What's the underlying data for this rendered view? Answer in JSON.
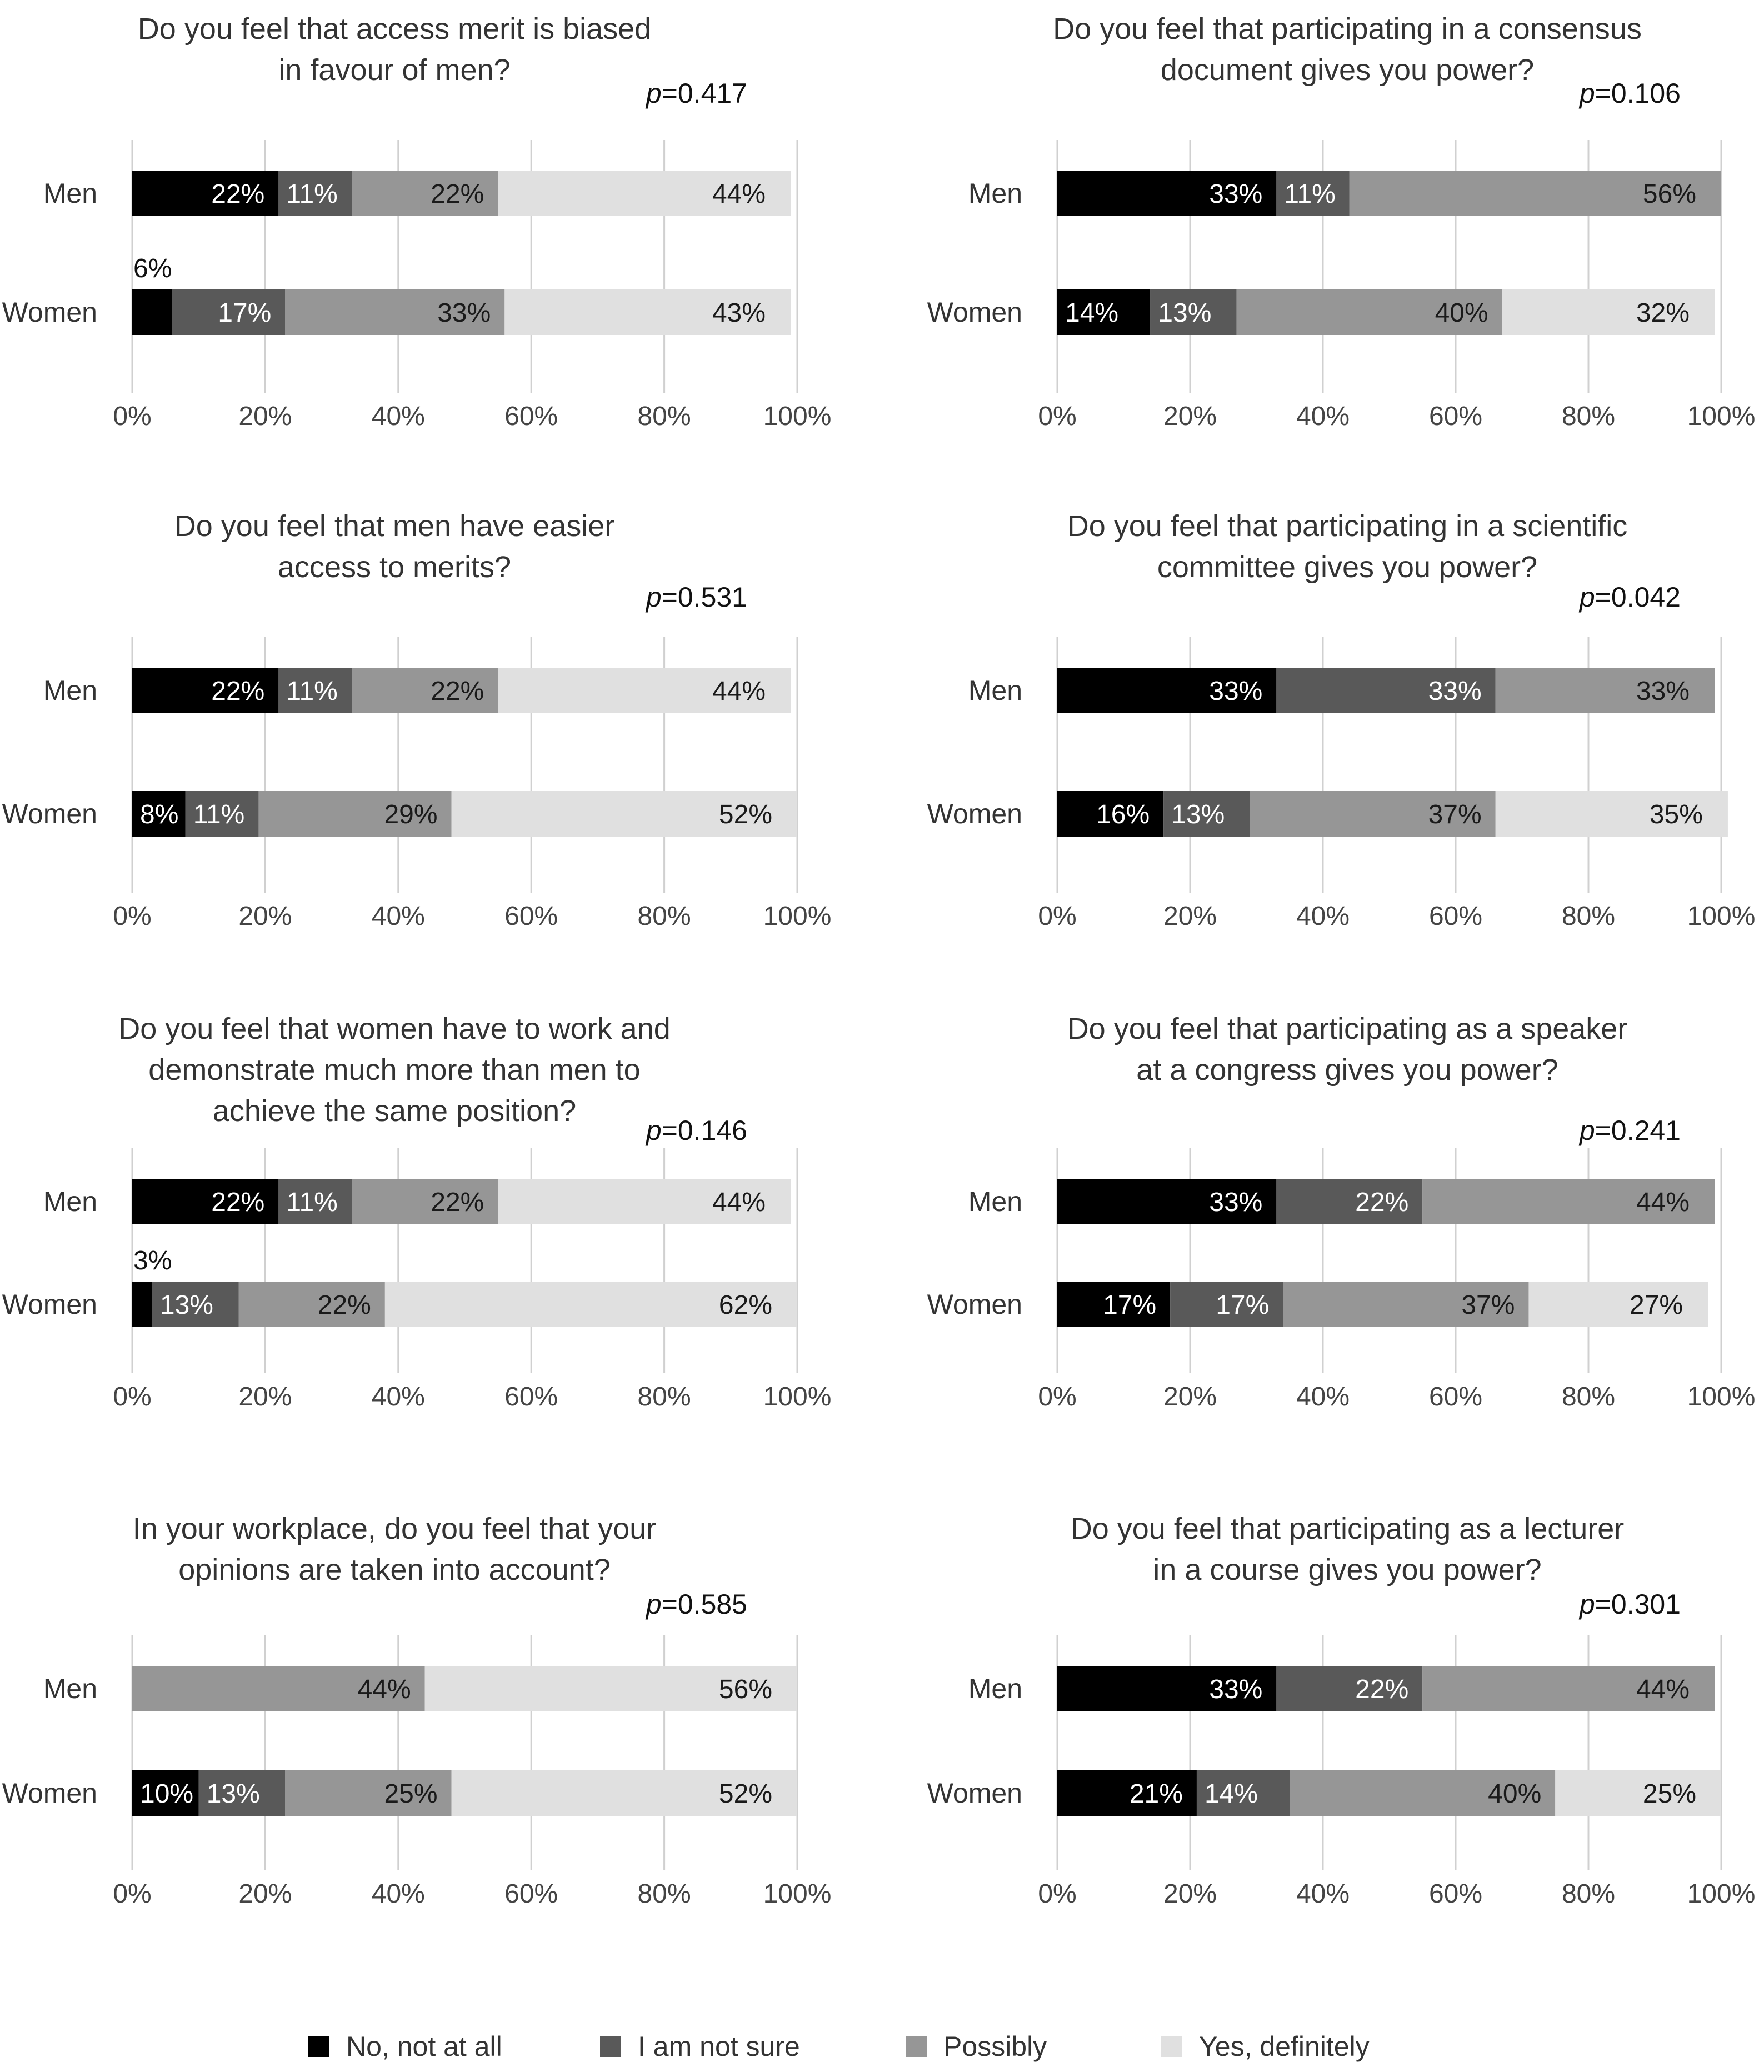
{
  "legend": {
    "items": [
      {
        "label": "No, not at all",
        "color": "#000000"
      },
      {
        "label": "I am not sure",
        "color": "#595959"
      },
      {
        "label": "Possibly",
        "color": "#969696"
      },
      {
        "label": "Yes, definitely",
        "color": "#e0e0e0"
      }
    ]
  },
  "chart_data": [
    {
      "type": "bar",
      "orientation": "horizontal",
      "stacked": true,
      "title": "Do you feel that access merit is biased in favour of men?",
      "title_lines": [
        "Do you feel that access merit is biased",
        "in favour of men?"
      ],
      "p_label": "p",
      "p_value": "=0.417",
      "categories": [
        "Men",
        "Women"
      ],
      "series": [
        {
          "name": "No, not at all",
          "values": [
            22,
            6
          ],
          "labels": [
            "22%",
            "6%"
          ]
        },
        {
          "name": "I am not sure",
          "values": [
            11,
            17
          ],
          "labels": [
            "11%",
            "17%"
          ]
        },
        {
          "name": "Possibly",
          "values": [
            22,
            33
          ],
          "labels": [
            "22%",
            "33%"
          ]
        },
        {
          "name": "Yes, definitely",
          "values": [
            44,
            43
          ],
          "labels": [
            "44%",
            "43%"
          ]
        }
      ],
      "xlim": [
        0,
        100
      ],
      "xticks": [
        "0%",
        "20%",
        "40%",
        "60%",
        "80%",
        "100%"
      ],
      "grid": true
    },
    {
      "type": "bar",
      "orientation": "horizontal",
      "stacked": true,
      "title": "Do you feel that participating in a consensus document gives you power?",
      "title_lines": [
        "Do you feel that participating in a consensus",
        "document gives you power?"
      ],
      "p_label": "p",
      "p_value": "=0.106",
      "categories": [
        "Men",
        "Women"
      ],
      "series": [
        {
          "name": "No, not at all",
          "values": [
            33,
            14
          ],
          "labels": [
            "33%",
            "14%"
          ]
        },
        {
          "name": "I am not sure",
          "values": [
            11,
            13
          ],
          "labels": [
            "11%",
            "13%"
          ]
        },
        {
          "name": "Possibly",
          "values": [
            56,
            40
          ],
          "labels": [
            "56%",
            "40%"
          ]
        },
        {
          "name": "Yes, definitely",
          "values": [
            0,
            32
          ],
          "labels": [
            "",
            "32%"
          ]
        }
      ],
      "xlim": [
        0,
        100
      ],
      "xticks": [
        "0%",
        "20%",
        "40%",
        "60%",
        "80%",
        "100%"
      ],
      "grid": true
    },
    {
      "type": "bar",
      "orientation": "horizontal",
      "stacked": true,
      "title": "Do you feel that men have easier access to merits?",
      "title_lines": [
        "Do you feel that men have easier",
        "access to merits?"
      ],
      "p_label": "p",
      "p_value": "=0.531",
      "categories": [
        "Men",
        "Women"
      ],
      "series": [
        {
          "name": "No, not at all",
          "values": [
            22,
            8
          ],
          "labels": [
            "22%",
            "8%"
          ]
        },
        {
          "name": "I am not sure",
          "values": [
            11,
            11
          ],
          "labels": [
            "11%",
            "11%"
          ]
        },
        {
          "name": "Possibly",
          "values": [
            22,
            29
          ],
          "labels": [
            "22%",
            "29%"
          ]
        },
        {
          "name": "Yes, definitely",
          "values": [
            44,
            52
          ],
          "labels": [
            "44%",
            "52%"
          ]
        }
      ],
      "xlim": [
        0,
        100
      ],
      "xticks": [
        "0%",
        "20%",
        "40%",
        "60%",
        "80%",
        "100%"
      ],
      "grid": true
    },
    {
      "type": "bar",
      "orientation": "horizontal",
      "stacked": true,
      "title": "Do you feel that participating in a scientific committee gives you power?",
      "title_lines": [
        "Do you feel that participating in a scientific",
        "committee gives you power?"
      ],
      "p_label": "p",
      "p_value": "=0.042",
      "categories": [
        "Men",
        "Women"
      ],
      "series": [
        {
          "name": "No, not at all",
          "values": [
            33,
            16
          ],
          "labels": [
            "33%",
            "16%"
          ]
        },
        {
          "name": "I am not sure",
          "values": [
            33,
            13
          ],
          "labels": [
            "33%",
            "13%"
          ]
        },
        {
          "name": "Possibly",
          "values": [
            33,
            37
          ],
          "labels": [
            "33%",
            "37%"
          ]
        },
        {
          "name": "Yes, definitely",
          "values": [
            0,
            35
          ],
          "labels": [
            "",
            "35%"
          ]
        }
      ],
      "xlim": [
        0,
        100
      ],
      "xticks": [
        "0%",
        "20%",
        "40%",
        "60%",
        "80%",
        "100%"
      ],
      "grid": true
    },
    {
      "type": "bar",
      "orientation": "horizontal",
      "stacked": true,
      "title": "Do you feel that women have to work and demonstrate much more than men to achieve the same position?",
      "title_lines": [
        "Do you feel that women have to work and",
        "demonstrate much more than men to",
        "achieve the same position?"
      ],
      "p_label": "p",
      "p_value": "=0.146",
      "categories": [
        "Men",
        "Women"
      ],
      "series": [
        {
          "name": "No, not at all",
          "values": [
            22,
            3
          ],
          "labels": [
            "22%",
            "3%"
          ]
        },
        {
          "name": "I am not sure",
          "values": [
            11,
            13
          ],
          "labels": [
            "11%",
            "13%"
          ]
        },
        {
          "name": "Possibly",
          "values": [
            22,
            22
          ],
          "labels": [
            "22%",
            "22%"
          ]
        },
        {
          "name": "Yes, definitely",
          "values": [
            44,
            62
          ],
          "labels": [
            "44%",
            "62%"
          ]
        }
      ],
      "xlim": [
        0,
        100
      ],
      "xticks": [
        "0%",
        "20%",
        "40%",
        "60%",
        "80%",
        "100%"
      ],
      "grid": true
    },
    {
      "type": "bar",
      "orientation": "horizontal",
      "stacked": true,
      "title": "Do you feel that participating as a speaker at a congress gives you power?",
      "title_lines": [
        "Do you feel that participating as a speaker",
        "at a congress gives you power?"
      ],
      "p_label": "p",
      "p_value": "=0.241",
      "categories": [
        "Men",
        "Women"
      ],
      "series": [
        {
          "name": "No, not at all",
          "values": [
            33,
            17
          ],
          "labels": [
            "33%",
            "17%"
          ]
        },
        {
          "name": "I am not sure",
          "values": [
            22,
            17
          ],
          "labels": [
            "22%",
            "17%"
          ]
        },
        {
          "name": "Possibly",
          "values": [
            44,
            37
          ],
          "labels": [
            "44%",
            "37%"
          ]
        },
        {
          "name": "Yes, definitely",
          "values": [
            0,
            27
          ],
          "labels": [
            "",
            "27%"
          ]
        }
      ],
      "xlim": [
        0,
        100
      ],
      "xticks": [
        "0%",
        "20%",
        "40%",
        "60%",
        "80%",
        "100%"
      ],
      "grid": true
    },
    {
      "type": "bar",
      "orientation": "horizontal",
      "stacked": true,
      "title": "In your workplace, do you feel that your opinions are taken into account?",
      "title_lines": [
        "In your workplace, do you feel that your",
        "opinions are taken into account?"
      ],
      "p_label": "p",
      "p_value": "=0.585",
      "categories": [
        "Men",
        "Women"
      ],
      "series": [
        {
          "name": "No, not at all",
          "values": [
            0,
            10
          ],
          "labels": [
            "",
            "10%"
          ]
        },
        {
          "name": "I am not sure",
          "values": [
            0,
            13
          ],
          "labels": [
            "",
            "13%"
          ]
        },
        {
          "name": "Possibly",
          "values": [
            44,
            25
          ],
          "labels": [
            "44%",
            "25%"
          ]
        },
        {
          "name": "Yes, definitely",
          "values": [
            56,
            52
          ],
          "labels": [
            "56%",
            "52%"
          ]
        }
      ],
      "xlim": [
        0,
        100
      ],
      "xticks": [
        "0%",
        "20%",
        "40%",
        "60%",
        "80%",
        "100%"
      ],
      "grid": true
    },
    {
      "type": "bar",
      "orientation": "horizontal",
      "stacked": true,
      "title": "Do you feel that participating as a lecturer in a course gives you power?",
      "title_lines": [
        "Do you feel that participating as a lecturer",
        "in a course gives you power?"
      ],
      "p_label": "p",
      "p_value": "=0.301",
      "categories": [
        "Men",
        "Women"
      ],
      "series": [
        {
          "name": "No, not at all",
          "values": [
            33,
            21
          ],
          "labels": [
            "33%",
            "21%"
          ]
        },
        {
          "name": "I am not sure",
          "values": [
            22,
            14
          ],
          "labels": [
            "22%",
            "14%"
          ]
        },
        {
          "name": "Possibly",
          "values": [
            44,
            40
          ],
          "labels": [
            "44%",
            "40%"
          ]
        },
        {
          "name": "Yes, definitely",
          "values": [
            0,
            25
          ],
          "labels": [
            "",
            "25%"
          ]
        }
      ],
      "xlim": [
        0,
        100
      ],
      "xticks": [
        "0%",
        "20%",
        "40%",
        "60%",
        "80%",
        "100%"
      ],
      "grid": true
    }
  ]
}
